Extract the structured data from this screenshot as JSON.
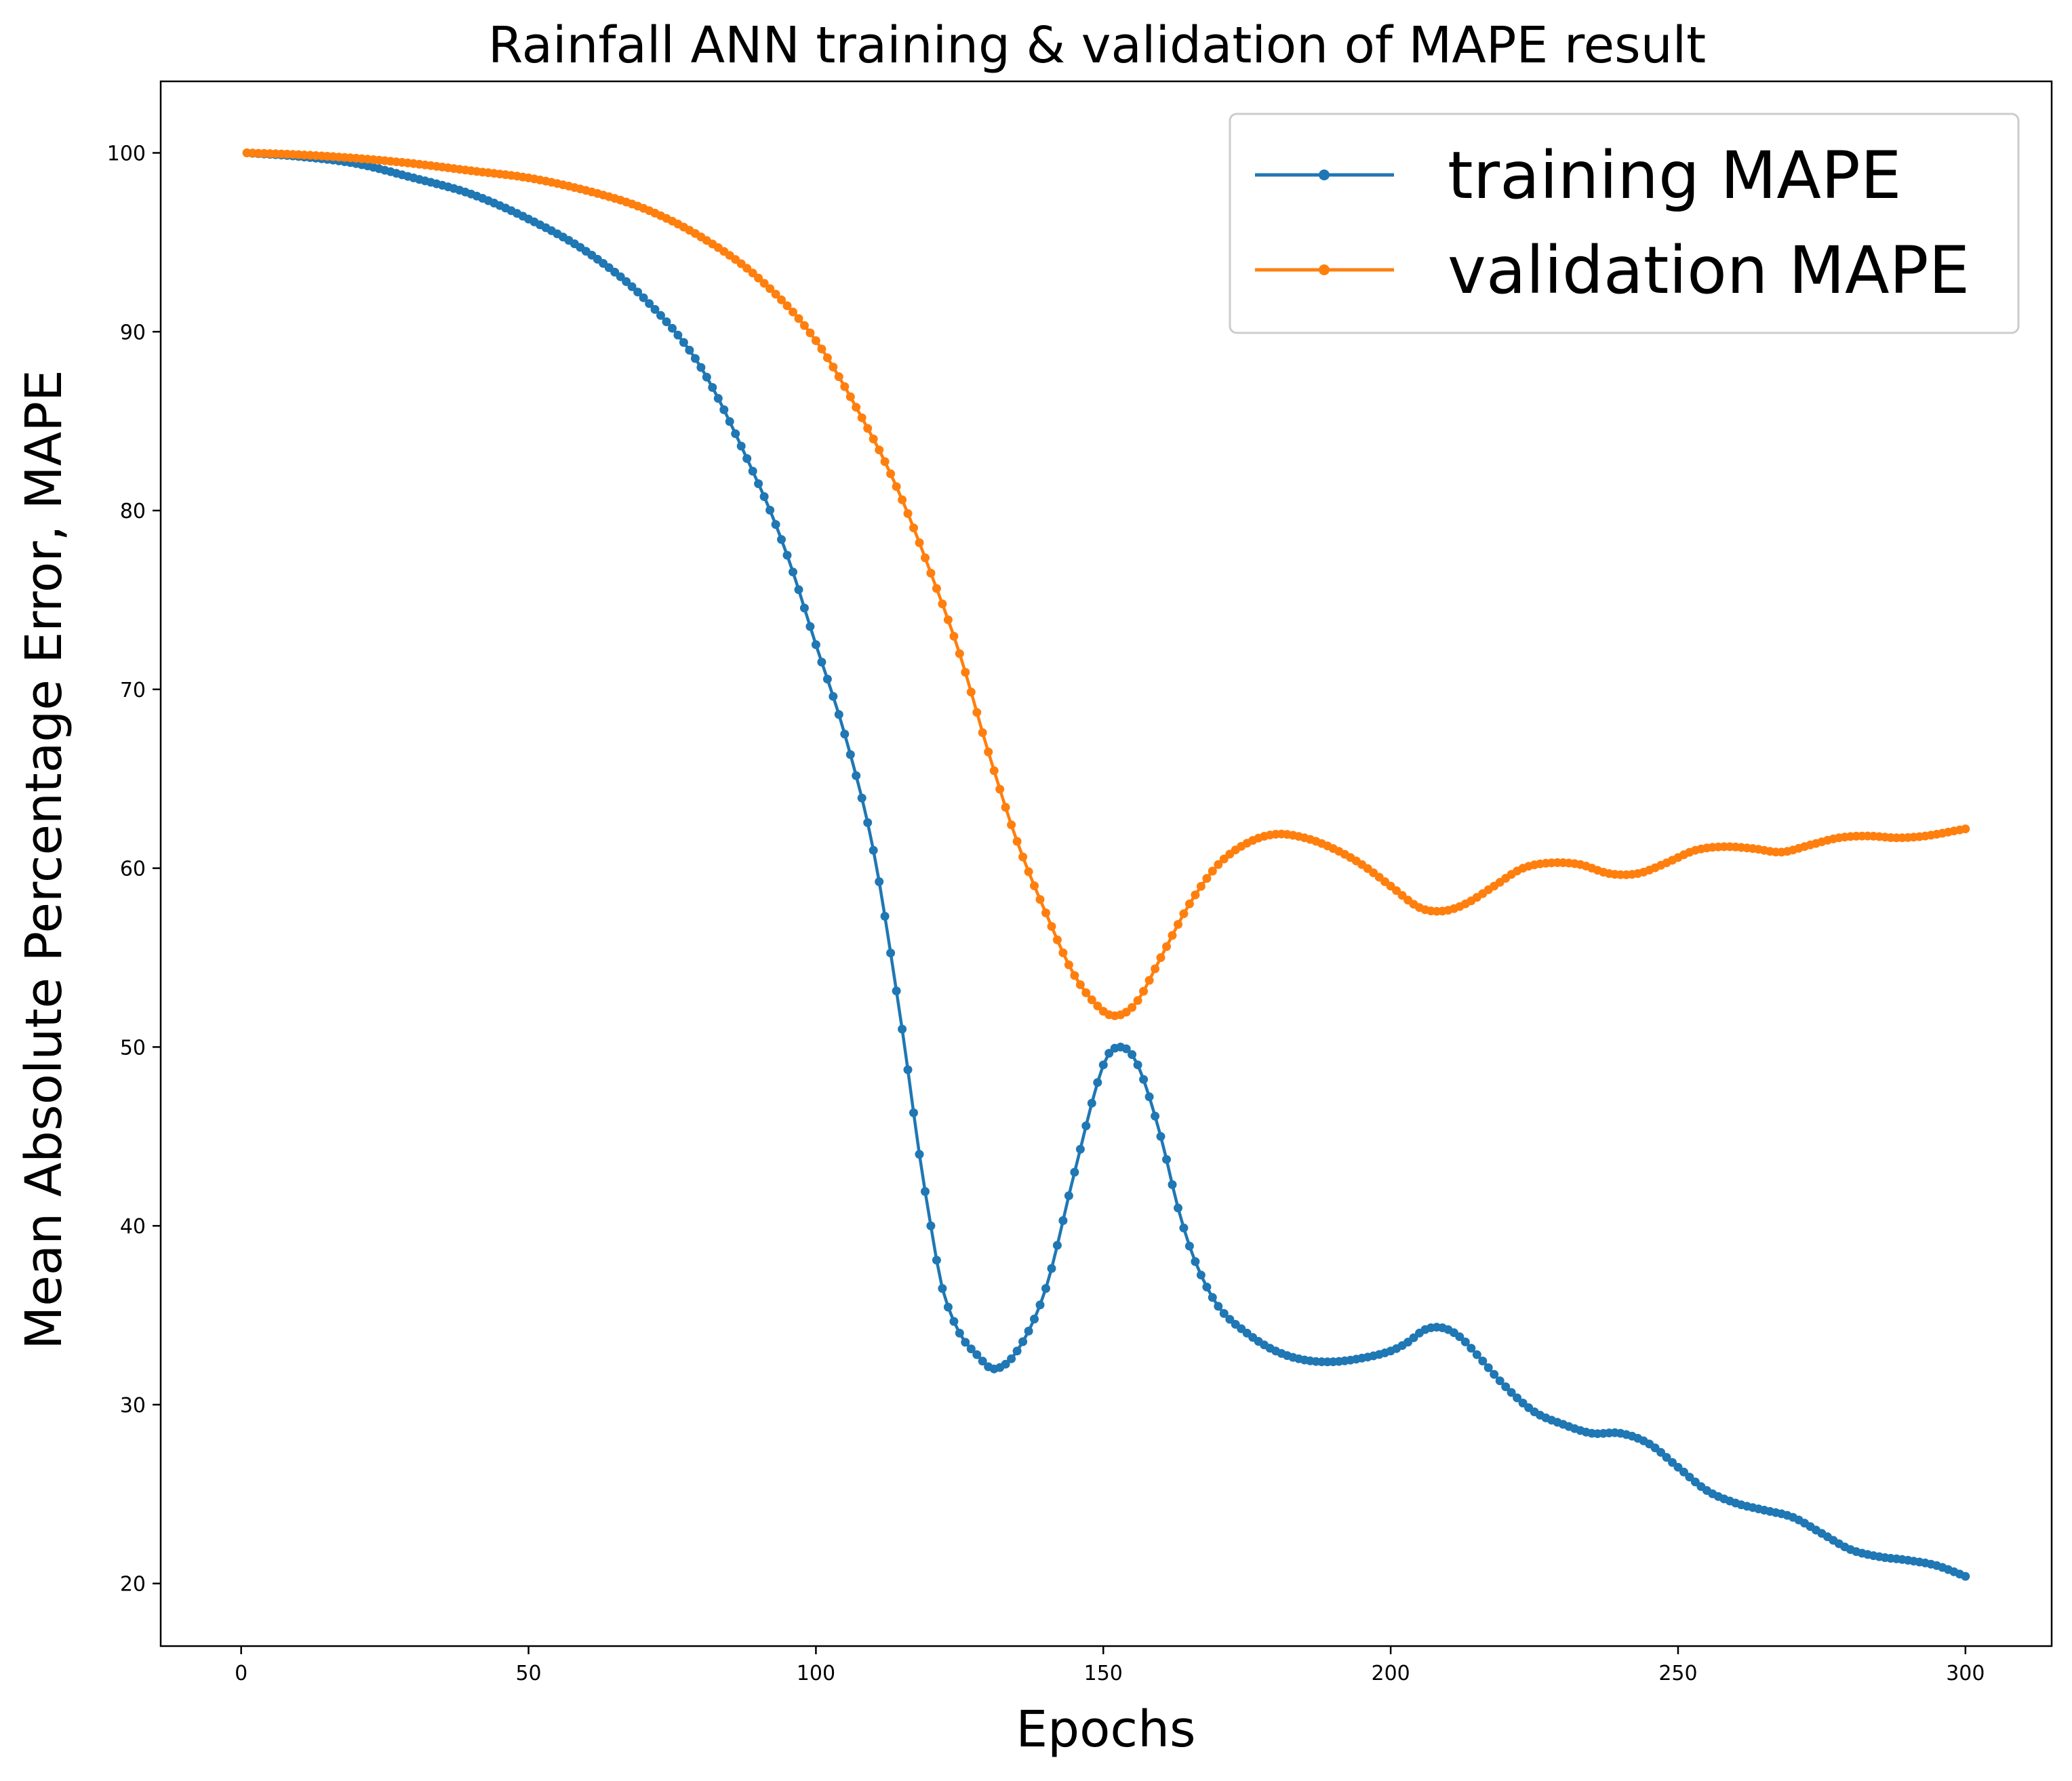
{
  "chart_data": {
    "type": "line",
    "title": "Rainfall ANN training & validation of MAPE result",
    "xlabel": "Epochs",
    "ylabel": "Mean Absolute Percentage Error, MAPE",
    "xlim": [
      -14,
      315
    ],
    "ylim": [
      16.5,
      104
    ],
    "xticks": [
      0,
      50,
      100,
      150,
      200,
      250,
      300
    ],
    "yticks": [
      20,
      30,
      40,
      50,
      60,
      70,
      80,
      90,
      100
    ],
    "x_range": [
      1,
      300
    ],
    "grid": false,
    "legend_position": "top-right",
    "series": [
      {
        "name": "training MAPE",
        "color": "#1f77b4",
        "marker": "circle",
        "key_points": [
          [
            1,
            100.0
          ],
          [
            10,
            99.8
          ],
          [
            20,
            99.4
          ],
          [
            30,
            98.6
          ],
          [
            40,
            97.7
          ],
          [
            50,
            96.3
          ],
          [
            60,
            94.5
          ],
          [
            70,
            91.9
          ],
          [
            80,
            88.0
          ],
          [
            90,
            81.5
          ],
          [
            95,
            77.5
          ],
          [
            100,
            72.5
          ],
          [
            105,
            67.5
          ],
          [
            110,
            61.0
          ],
          [
            115,
            51.0
          ],
          [
            118,
            44.0
          ],
          [
            120,
            40.0
          ],
          [
            122,
            36.5
          ],
          [
            125,
            34.0
          ],
          [
            128,
            32.8
          ],
          [
            131,
            32.0
          ],
          [
            135,
            33.0
          ],
          [
            140,
            36.5
          ],
          [
            145,
            43.0
          ],
          [
            150,
            49.0
          ],
          [
            153,
            50.0
          ],
          [
            156,
            49.0
          ],
          [
            160,
            45.0
          ],
          [
            163,
            41.0
          ],
          [
            166,
            38.0
          ],
          [
            170,
            35.5
          ],
          [
            175,
            34.0
          ],
          [
            180,
            33.0
          ],
          [
            185,
            32.5
          ],
          [
            190,
            32.4
          ],
          [
            195,
            32.6
          ],
          [
            200,
            33.0
          ],
          [
            203,
            33.5
          ],
          [
            206,
            34.2
          ],
          [
            209,
            34.3
          ],
          [
            212,
            33.8
          ],
          [
            215,
            32.8
          ],
          [
            220,
            31.0
          ],
          [
            225,
            29.6
          ],
          [
            230,
            28.9
          ],
          [
            235,
            28.4
          ],
          [
            240,
            28.4
          ],
          [
            245,
            27.8
          ],
          [
            250,
            26.5
          ],
          [
            255,
            25.2
          ],
          [
            260,
            24.5
          ],
          [
            265,
            24.1
          ],
          [
            270,
            23.7
          ],
          [
            275,
            22.8
          ],
          [
            280,
            21.9
          ],
          [
            285,
            21.5
          ],
          [
            290,
            21.3
          ],
          [
            295,
            21.0
          ],
          [
            300,
            20.4
          ]
        ]
      },
      {
        "name": "validation MAPE",
        "color": "#ff7f0e",
        "marker": "circle",
        "key_points": [
          [
            1,
            100.0
          ],
          [
            10,
            99.9
          ],
          [
            20,
            99.7
          ],
          [
            30,
            99.4
          ],
          [
            40,
            99.0
          ],
          [
            50,
            98.6
          ],
          [
            60,
            97.9
          ],
          [
            70,
            96.9
          ],
          [
            80,
            95.3
          ],
          [
            90,
            93.0
          ],
          [
            100,
            89.5
          ],
          [
            110,
            84.0
          ],
          [
            115,
            80.6
          ],
          [
            120,
            76.5
          ],
          [
            125,
            72.0
          ],
          [
            130,
            66.5
          ],
          [
            135,
            61.5
          ],
          [
            140,
            57.5
          ],
          [
            145,
            54.0
          ],
          [
            150,
            52.0
          ],
          [
            153,
            51.8
          ],
          [
            156,
            52.6
          ],
          [
            160,
            55.0
          ],
          [
            165,
            58.0
          ],
          [
            170,
            60.2
          ],
          [
            175,
            61.4
          ],
          [
            180,
            61.9
          ],
          [
            185,
            61.7
          ],
          [
            190,
            61.1
          ],
          [
            195,
            60.2
          ],
          [
            200,
            59.0
          ],
          [
            205,
            57.8
          ],
          [
            209,
            57.6
          ],
          [
            213,
            58.0
          ],
          [
            218,
            59.0
          ],
          [
            223,
            60.0
          ],
          [
            228,
            60.3
          ],
          [
            233,
            60.2
          ],
          [
            238,
            59.7
          ],
          [
            243,
            59.7
          ],
          [
            248,
            60.3
          ],
          [
            253,
            61.0
          ],
          [
            258,
            61.2
          ],
          [
            263,
            61.1
          ],
          [
            268,
            60.9
          ],
          [
            273,
            61.3
          ],
          [
            278,
            61.7
          ],
          [
            283,
            61.8
          ],
          [
            288,
            61.7
          ],
          [
            293,
            61.8
          ],
          [
            300,
            62.2
          ]
        ]
      }
    ]
  }
}
